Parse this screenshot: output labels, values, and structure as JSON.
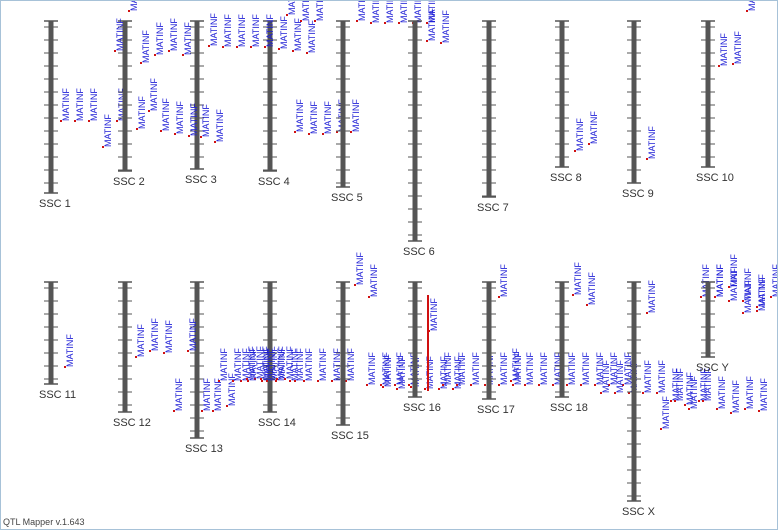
{
  "app": {
    "footer": "QTL Mapper v.1.643"
  },
  "colors": {
    "chromosome": "#555555",
    "tick": "#555555",
    "qtl_label": "#1f1fd6",
    "qtl_marker": "#d01010",
    "highlight_bar": "#d01010"
  },
  "chart_data": {
    "type": "chromosome-map",
    "trait_label": "MATINF",
    "chromosomes": [
      {
        "name": "SSC 1",
        "qtl_count": 5
      },
      {
        "name": "SSC 2",
        "qtl_count": 9
      },
      {
        "name": "SSC 3",
        "qtl_count": 8
      },
      {
        "name": "SSC 4",
        "qtl_count": 12
      },
      {
        "name": "SSC 5",
        "qtl_count": 6
      },
      {
        "name": "SSC 6",
        "qtl_count": 2
      },
      {
        "name": "SSC 7",
        "qtl_count": 0
      },
      {
        "name": "SSC 8",
        "qtl_count": 2
      },
      {
        "name": "SSC 9",
        "qtl_count": 1
      },
      {
        "name": "SSC 10",
        "qtl_count": 3
      },
      {
        "name": "SSC 11",
        "qtl_count": 1
      },
      {
        "name": "SSC 12",
        "qtl_count": 3
      },
      {
        "name": "SSC 13",
        "qtl_count": 8
      },
      {
        "name": "SSC 14",
        "qtl_count": 16
      },
      {
        "name": "SSC 15",
        "qtl_count": 12
      },
      {
        "name": "SSC 16",
        "qtl_count": 7
      },
      {
        "name": "SSC 17",
        "qtl_count": 10
      },
      {
        "name": "SSC 18",
        "qtl_count": 12
      },
      {
        "name": "SSC X",
        "qtl_count": 14
      },
      {
        "name": "SSC Y",
        "qtl_count": 5
      }
    ]
  }
}
